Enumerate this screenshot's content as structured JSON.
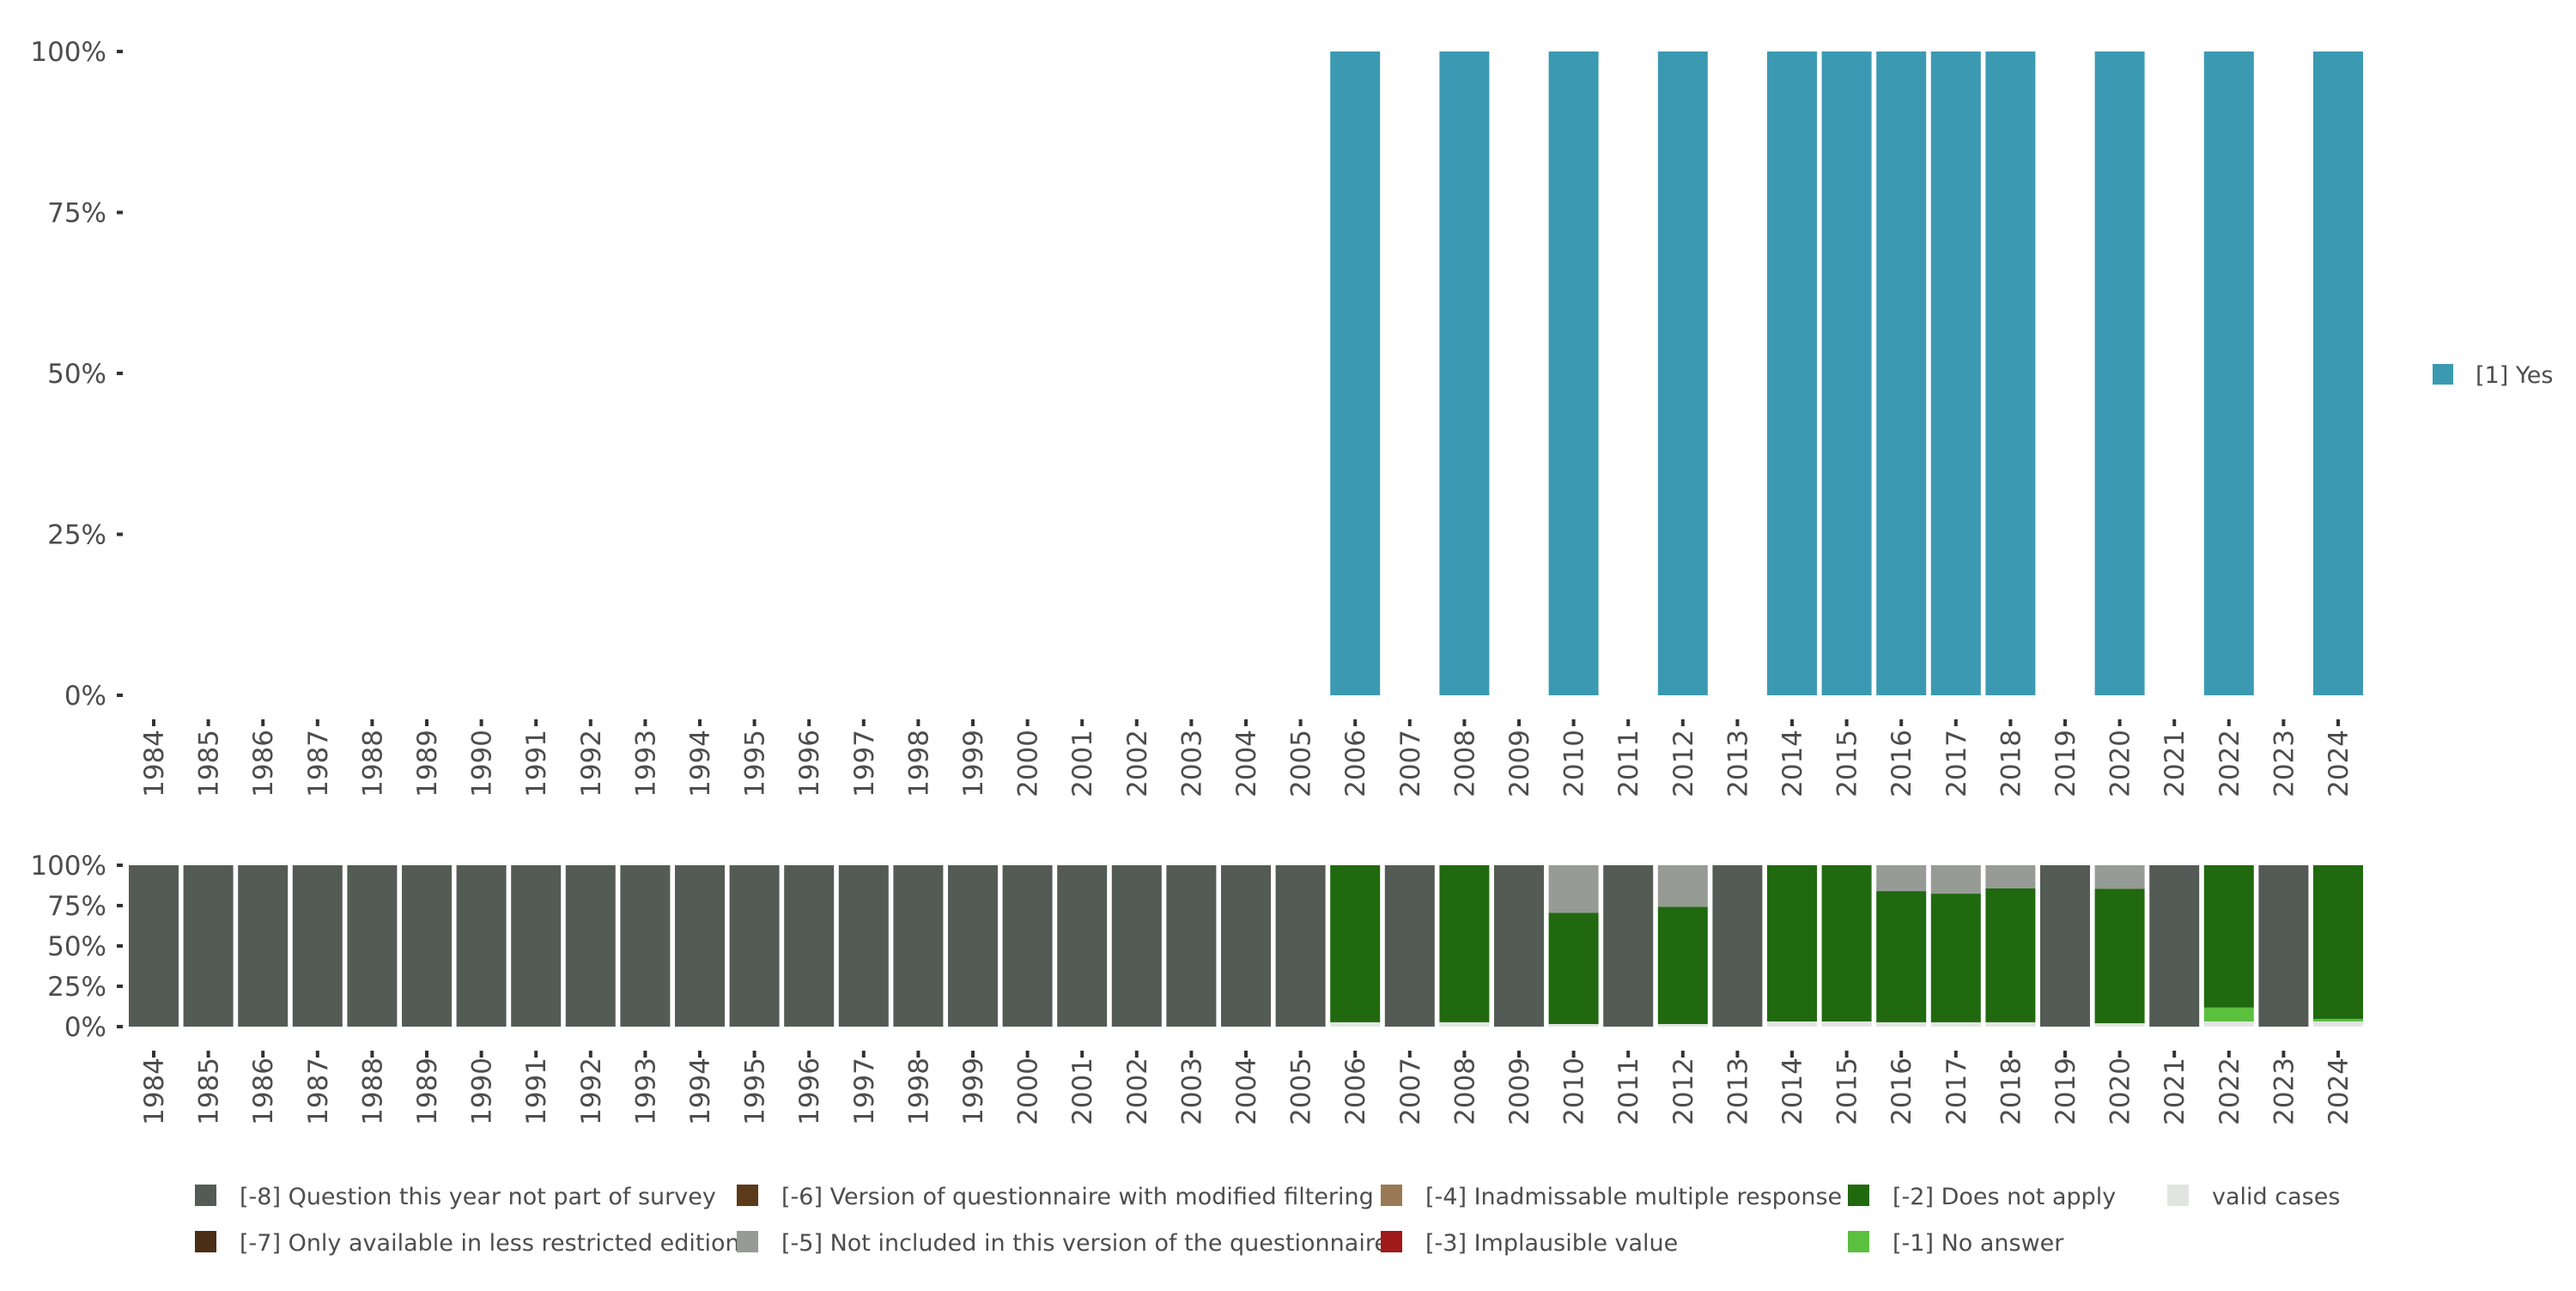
{
  "chart_data": [
    {
      "type": "bar",
      "name": "valid-responses",
      "categories": [
        "1984",
        "1985",
        "1986",
        "1987",
        "1988",
        "1989",
        "1990",
        "1991",
        "1992",
        "1993",
        "1994",
        "1995",
        "1996",
        "1997",
        "1998",
        "1999",
        "2000",
        "2001",
        "2002",
        "2003",
        "2004",
        "2005",
        "2006",
        "2007",
        "2008",
        "2009",
        "2010",
        "2011",
        "2012",
        "2013",
        "2014",
        "2015",
        "2016",
        "2017",
        "2018",
        "2019",
        "2020",
        "2021",
        "2022",
        "2023",
        "2024"
      ],
      "ylim": [
        0,
        100
      ],
      "yticks": [
        "0%",
        "25%",
        "50%",
        "75%",
        "100%"
      ],
      "series": [
        {
          "name": "[1] Yes",
          "color": "#3b9ab2",
          "values": {
            "2006": 100,
            "2008": 100,
            "2010": 100,
            "2012": 100,
            "2014": 100,
            "2015": 100,
            "2016": 100,
            "2017": 100,
            "2018": 100,
            "2020": 100,
            "2022": 100,
            "2024": 100
          }
        }
      ],
      "legend": "right"
    },
    {
      "type": "bar",
      "name": "missing-codes",
      "stacked": true,
      "categories": [
        "1984",
        "1985",
        "1986",
        "1987",
        "1988",
        "1989",
        "1990",
        "1991",
        "1992",
        "1993",
        "1994",
        "1995",
        "1996",
        "1997",
        "1998",
        "1999",
        "2000",
        "2001",
        "2002",
        "2003",
        "2004",
        "2005",
        "2006",
        "2007",
        "2008",
        "2009",
        "2010",
        "2011",
        "2012",
        "2013",
        "2014",
        "2015",
        "2016",
        "2017",
        "2018",
        "2019",
        "2020",
        "2021",
        "2022",
        "2023",
        "2024"
      ],
      "ylim": [
        0,
        100
      ],
      "yticks": [
        "0%",
        "25%",
        "50%",
        "75%",
        "100%"
      ],
      "series": [
        {
          "name": "valid cases",
          "color": "#e1e5e0",
          "values": {
            "2006": 2.7,
            "2008": 2.7,
            "2010": 1.6,
            "2012": 1.6,
            "2014": 3.2,
            "2015": 3.2,
            "2016": 2.7,
            "2017": 2.7,
            "2018": 2.7,
            "2020": 2.1,
            "2022": 3.2,
            "2024": 3.2
          }
        },
        {
          "name": "[-1] No answer",
          "color": "#5bbf3f",
          "values": {
            "2022": 8.6,
            "2024": 1.6
          }
        },
        {
          "name": "[-2] Does not apply",
          "color": "#21690f",
          "values": {
            "2006": 97.3,
            "2008": 97.3,
            "2010": 69.0,
            "2012": 72.7,
            "2014": 96.8,
            "2015": 96.8,
            "2016": 81.3,
            "2017": 79.7,
            "2018": 83.0,
            "2020": 83.4,
            "2022": 88.2,
            "2024": 95.2
          }
        },
        {
          "name": "[-3] Implausible value",
          "color": "#a0191b",
          "values": {}
        },
        {
          "name": "[-4] Inadmissable multiple response",
          "color": "#9a7a55",
          "values": {}
        },
        {
          "name": "[-5] Not included in this version of the questionnaire",
          "color": "#979b95",
          "values": {
            "2010": 29.4,
            "2012": 25.7,
            "2016": 16.0,
            "2017": 17.6,
            "2018": 14.3,
            "2020": 14.5
          }
        },
        {
          "name": "[-6] Version of questionnaire with modified filtering",
          "color": "#5a3a1a",
          "values": {}
        },
        {
          "name": "[-7] Only available in less restricted edition",
          "color": "#4a2e15",
          "values": {}
        },
        {
          "name": "[-8] Question this year not part of survey",
          "color": "#545b55",
          "values": {
            "1984": 100,
            "1985": 100,
            "1986": 100,
            "1987": 100,
            "1988": 100,
            "1989": 100,
            "1990": 100,
            "1991": 100,
            "1992": 100,
            "1993": 100,
            "1994": 100,
            "1995": 100,
            "1996": 100,
            "1997": 100,
            "1998": 100,
            "1999": 100,
            "2000": 100,
            "2001": 100,
            "2002": 100,
            "2003": 100,
            "2004": 100,
            "2005": 100,
            "2007": 100,
            "2009": 100,
            "2011": 100,
            "2013": 100,
            "2019": 100,
            "2021": 100,
            "2023": 100
          }
        }
      ],
      "legend_order": [
        "[-8] Question this year not part of survey",
        "[-7] Only available in less restricted edition",
        "[-6] Version of questionnaire with modified filtering",
        "[-5] Not included in this version of the questionnaire",
        "[-4] Inadmissable multiple response",
        "[-3] Implausible value",
        "[-2] Does not apply",
        "[-1] No answer",
        "valid cases"
      ],
      "legend": "bottom"
    }
  ]
}
